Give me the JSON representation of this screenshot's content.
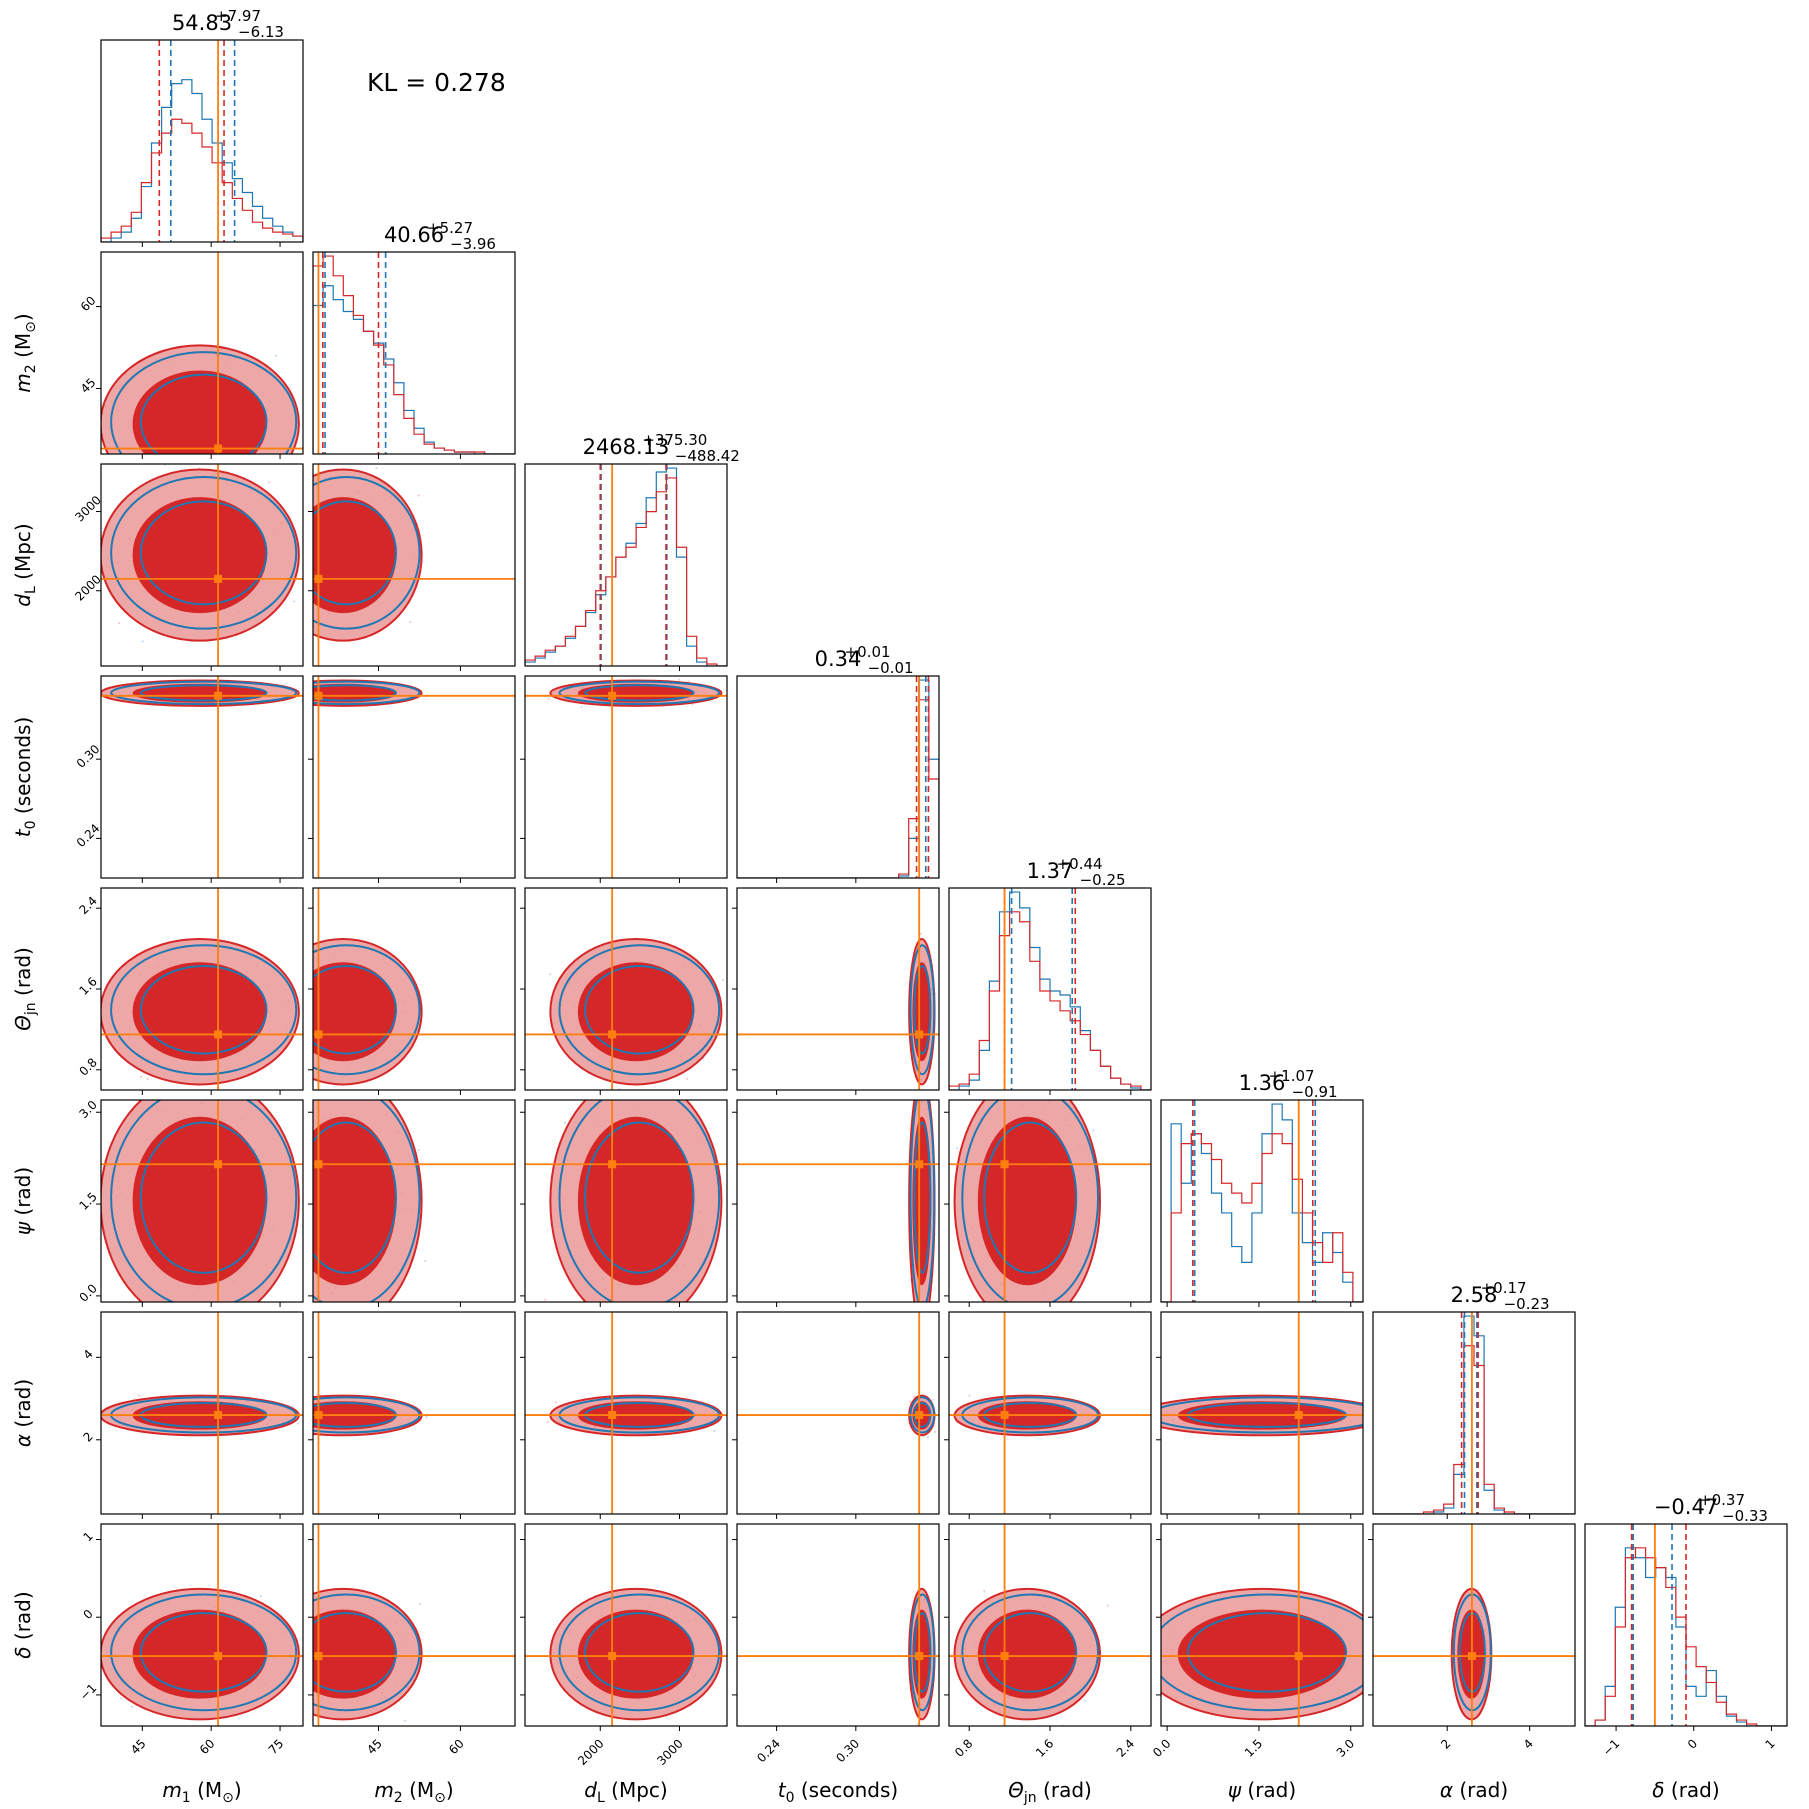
{
  "chart_data": {
    "type": "corner",
    "annotation": "KL = 0.278",
    "colors": {
      "series_a": "#d62728",
      "series_a_light": "#e8898a",
      "series_b": "#1f77b4",
      "truth": "#ff7f0e"
    },
    "parameters": [
      {
        "key": "m1",
        "label_html": "m1 (M⊙)",
        "label": [
          "m",
          "1",
          " (M",
          "⊙",
          ")"
        ],
        "range": [
          36,
          80
        ],
        "ticks": [
          45,
          60,
          75
        ],
        "tick_labels": [
          "45",
          "60",
          "75"
        ],
        "truth": 61.5,
        "title": {
          "main": "54.83",
          "plus": "+7.97",
          "minus": "−6.13"
        },
        "quantiles_a": [
          48.7,
          62.8
        ],
        "quantiles_b": [
          51.2,
          65.1
        ],
        "hist_a": [
          0.02,
          0.05,
          0.08,
          0.15,
          0.3,
          0.45,
          0.55,
          0.62,
          0.6,
          0.55,
          0.48,
          0.4,
          0.3,
          0.22,
          0.16,
          0.1,
          0.07,
          0.05,
          0.04,
          0.03
        ],
        "hist_b": [
          0.0,
          0.02,
          0.05,
          0.12,
          0.28,
          0.5,
          0.68,
          0.8,
          0.82,
          0.75,
          0.62,
          0.5,
          0.4,
          0.32,
          0.25,
          0.18,
          0.12,
          0.08,
          0.05,
          0.03
        ],
        "blob": [
          53,
          62,
          9
        ]
      },
      {
        "key": "m2",
        "label": [
          "m",
          "2",
          " (M",
          "⊙",
          ")"
        ],
        "range": [
          33,
          70
        ],
        "ticks": [
          45,
          60
        ],
        "tick_labels": [
          "45",
          "60"
        ],
        "truth": 34.0,
        "title": {
          "main": "40.66",
          "plus": "+5.27",
          "minus": "−3.96"
        },
        "quantiles_a": [
          34.8,
          45.0
        ],
        "quantiles_b": [
          35.2,
          46.3
        ],
        "hist_a": [
          0.95,
          1.0,
          0.9,
          0.8,
          0.7,
          0.62,
          0.55,
          0.45,
          0.3,
          0.18,
          0.1,
          0.05,
          0.03,
          0.02,
          0.01,
          0.01,
          0.01,
          0.0,
          0.0,
          0.0
        ],
        "hist_b": [
          0.75,
          0.85,
          0.78,
          0.72,
          0.68,
          0.62,
          0.56,
          0.48,
          0.36,
          0.22,
          0.13,
          0.06,
          0.03,
          0.02,
          0.01,
          0.01,
          0.0,
          0.0,
          0.0,
          0.0
        ],
        "blob": [
          38,
          39,
          6
        ]
      },
      {
        "key": "dL",
        "label": [
          "d",
          "L",
          " (Mpc)",
          "",
          ""
        ],
        "range": [
          1050,
          3600
        ],
        "ticks": [
          2000,
          3000
        ],
        "tick_labels": [
          "2000",
          "3000"
        ],
        "truth": 2150,
        "title": {
          "main": "2468.13",
          "plus": "+375.30",
          "minus": "−488.42"
        },
        "quantiles_a": [
          2000,
          2830
        ],
        "quantiles_b": [
          2010,
          2840
        ],
        "hist_a": [
          0.03,
          0.05,
          0.08,
          0.1,
          0.15,
          0.2,
          0.28,
          0.38,
          0.45,
          0.55,
          0.6,
          0.7,
          0.78,
          0.88,
          0.95,
          0.6,
          0.15,
          0.04,
          0.01,
          0.0
        ],
        "hist_b": [
          0.02,
          0.04,
          0.07,
          0.1,
          0.14,
          0.2,
          0.27,
          0.36,
          0.45,
          0.55,
          0.62,
          0.72,
          0.85,
          0.98,
          1.0,
          0.55,
          0.1,
          0.02,
          0.0,
          0.0
        ],
        "blob": [
          2450,
          2450,
          450
        ]
      },
      {
        "key": "t0",
        "label": [
          "t",
          "0",
          " (seconds)",
          "",
          ""
        ],
        "range": [
          0.21,
          0.363
        ],
        "ticks": [
          0.24,
          0.3
        ],
        "tick_labels": [
          "0.24",
          "0.30"
        ],
        "truth": 0.348,
        "title": {
          "main": "0.34",
          "plus": "+0.01",
          "minus": "−0.01"
        },
        "quantiles_a": [
          0.346,
          0.355
        ],
        "quantiles_b": [
          0.348,
          0.353
        ],
        "hist_a": [
          0,
          0,
          0,
          0,
          0,
          0,
          0,
          0,
          0,
          0,
          0,
          0,
          0,
          0,
          0,
          0,
          0.02,
          0.3,
          0.9,
          0.5
        ],
        "hist_b": [
          0,
          0,
          0,
          0,
          0,
          0,
          0,
          0,
          0,
          0,
          0,
          0,
          0,
          0,
          0,
          0,
          0.01,
          0.2,
          1.0,
          0.6
        ],
        "blob": [
          0.35,
          0.35,
          0.004
        ]
      },
      {
        "key": "theta",
        "label": [
          "Θ",
          "jn",
          " (rad)",
          "",
          ""
        ],
        "range": [
          0.6,
          2.6
        ],
        "ticks": [
          0.8,
          1.6,
          2.4
        ],
        "tick_labels": [
          "0.8",
          "1.6",
          "2.4"
        ],
        "truth": 1.15,
        "title": {
          "main": "1.37",
          "plus": "+0.44",
          "minus": "−0.25"
        },
        "quantiles_a": [
          1.15,
          1.85
        ],
        "quantiles_b": [
          1.22,
          1.82
        ],
        "hist_a": [
          0.02,
          0.03,
          0.08,
          0.25,
          0.5,
          0.78,
          0.9,
          0.85,
          0.65,
          0.5,
          0.45,
          0.4,
          0.35,
          0.28,
          0.2,
          0.12,
          0.06,
          0.03,
          0.02,
          0.0
        ],
        "hist_b": [
          0.0,
          0.02,
          0.05,
          0.2,
          0.55,
          0.9,
          1.0,
          0.92,
          0.72,
          0.56,
          0.5,
          0.48,
          0.42,
          0.3,
          0.2,
          0.12,
          0.06,
          0.03,
          0.01,
          0.0
        ],
        "blob": [
          1.35,
          1.4,
          0.3
        ]
      },
      {
        "key": "psi",
        "label": [
          "ψ",
          "",
          " (rad)",
          "",
          ""
        ],
        "range": [
          -0.1,
          3.2
        ],
        "ticks": [
          0.0,
          1.5,
          3.0
        ],
        "tick_labels": [
          "0.0",
          "1.5",
          "3.0"
        ],
        "truth": 2.15,
        "title": {
          "main": "1.36",
          "plus": "+1.07",
          "minus": "−0.91"
        },
        "quantiles_a": [
          0.42,
          2.38
        ],
        "quantiles_b": [
          0.45,
          2.42
        ],
        "hist_a": [
          0.0,
          0.45,
          0.8,
          0.85,
          0.8,
          0.72,
          0.6,
          0.55,
          0.5,
          0.6,
          0.75,
          0.85,
          0.8,
          0.62,
          0.45,
          0.3,
          0.2,
          0.35,
          0.15,
          0.0
        ],
        "hist_b": [
          0.0,
          0.9,
          0.6,
          0.85,
          0.75,
          0.55,
          0.45,
          0.28,
          0.2,
          0.45,
          0.85,
          1.0,
          0.92,
          0.45,
          0.3,
          0.2,
          0.35,
          0.25,
          0.1,
          0.0
        ],
        "blob": [
          1.5,
          1.6,
          0.85
        ]
      },
      {
        "key": "alpha",
        "label": [
          "α",
          "",
          " (rad)",
          "",
          ""
        ],
        "range": [
          0.2,
          5.1
        ],
        "ticks": [
          2,
          4
        ],
        "tick_labels": [
          "2",
          "4"
        ],
        "truth": 2.6,
        "title": {
          "main": "2.58",
          "plus": "+0.17",
          "minus": "−0.23"
        },
        "quantiles_a": [
          2.35,
          2.75
        ],
        "quantiles_b": [
          2.42,
          2.72
        ],
        "hist_a": [
          0,
          0,
          0,
          0,
          0,
          0.01,
          0.02,
          0.05,
          0.25,
          0.85,
          0.75,
          0.15,
          0.03,
          0.01,
          0,
          0,
          0,
          0,
          0,
          0
        ],
        "hist_b": [
          0,
          0,
          0,
          0,
          0,
          0,
          0.01,
          0.03,
          0.2,
          1.0,
          0.9,
          0.12,
          0.02,
          0,
          0,
          0,
          0,
          0,
          0,
          0
        ],
        "blob": [
          2.58,
          2.6,
          0.2
        ]
      },
      {
        "key": "delta",
        "label": [
          "δ",
          "",
          " (rad)",
          "",
          ""
        ],
        "range": [
          -1.4,
          1.2
        ],
        "ticks": [
          -1,
          0,
          1
        ],
        "tick_labels": [
          "−1",
          "0",
          "1"
        ],
        "truth": -0.5,
        "title": {
          "main": "−0.47",
          "plus": "+0.37",
          "minus": "−0.33"
        },
        "quantiles_a": [
          -0.8,
          -0.1
        ],
        "quantiles_b": [
          -0.78,
          -0.28
        ],
        "hist_a": [
          0.0,
          0.03,
          0.15,
          0.5,
          0.85,
          0.9,
          0.85,
          0.8,
          0.7,
          0.55,
          0.4,
          0.3,
          0.22,
          0.12,
          0.06,
          0.03,
          0.01,
          0.0,
          0.0,
          0.0
        ],
        "hist_b": [
          0.0,
          0.03,
          0.2,
          0.6,
          0.9,
          0.85,
          0.75,
          0.8,
          0.75,
          0.5,
          0.2,
          0.15,
          0.28,
          0.15,
          0.05,
          0.02,
          0.0,
          0.0,
          0.0,
          0.0
        ],
        "blob": [
          -0.45,
          -0.5,
          0.35
        ]
      }
    ]
  }
}
